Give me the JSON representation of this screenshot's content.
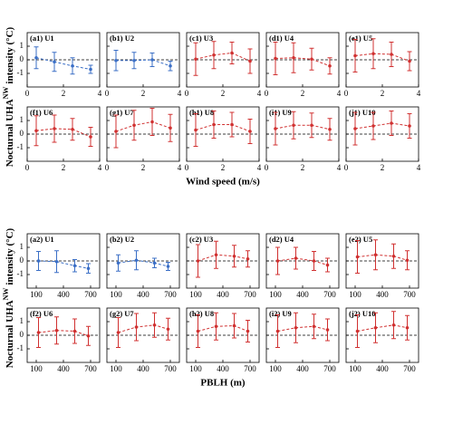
{
  "chart_data": [
    {
      "type": "errorbar",
      "xlabel": "Wind speed (m/s)",
      "ylabel": [
        "Nocturnal UHA",
        "NW",
        "intensity (°C)"
      ],
      "xlim": [
        0,
        4
      ],
      "xticks": [
        0,
        2,
        4
      ],
      "ylim": [
        -2,
        2
      ],
      "yticks": [
        -1,
        0,
        1
      ],
      "panels": [
        {
          "title": "(a1) U1",
          "color": "#3b6fc6",
          "x": [
            0.5,
            1.5,
            2.5,
            3.5
          ],
          "values": [
            0.15,
            -0.15,
            -0.45,
            -0.7
          ],
          "errors": [
            0.8,
            0.7,
            0.6,
            0.3
          ]
        },
        {
          "title": "(b1) U2",
          "color": "#3b6fc6",
          "x": [
            0.5,
            1.5,
            2.5,
            3.5
          ],
          "values": [
            -0.05,
            -0.05,
            0,
            -0.45
          ],
          "errors": [
            0.75,
            0.6,
            0.5,
            0.35
          ]
        },
        {
          "title": "(c1) U3",
          "color": "#d03030",
          "x": [
            0.5,
            1.5,
            2.5,
            3.5
          ],
          "values": [
            0.05,
            0.35,
            0.5,
            -0.1
          ],
          "errors": [
            1.2,
            1.0,
            0.8,
            0.9
          ]
        },
        {
          "title": "(d1) U4",
          "color": "#d03030",
          "x": [
            0.5,
            1.5,
            2.5,
            3.5
          ],
          "values": [
            0.1,
            0.15,
            0.05,
            -0.45
          ],
          "errors": [
            1.2,
            1.1,
            0.8,
            0.6
          ]
        },
        {
          "title": "(e1) U5",
          "color": "#d03030",
          "x": [
            0.5,
            1.5,
            2.5,
            3.5
          ],
          "values": [
            0.3,
            0.45,
            0.4,
            -0.1
          ],
          "errors": [
            1.2,
            1.1,
            0.9,
            0.7
          ]
        },
        {
          "title": "(f1) U6",
          "color": "#d03030",
          "x": [
            0.5,
            1.5,
            2.5,
            3.5
          ],
          "values": [
            0.25,
            0.4,
            0.35,
            -0.2
          ],
          "errors": [
            1.1,
            1.0,
            0.8,
            0.7
          ]
        },
        {
          "title": "(g1) U7",
          "color": "#d03030",
          "x": [
            0.5,
            1.5,
            2.5,
            3.5
          ],
          "values": [
            0.2,
            0.65,
            0.9,
            0.45
          ],
          "errors": [
            1.2,
            1.1,
            1.0,
            1.0
          ]
        },
        {
          "title": "(h1) U8",
          "color": "#d03030",
          "x": [
            0.5,
            1.5,
            2.5,
            3.5
          ],
          "values": [
            0.3,
            0.7,
            0.7,
            0.2
          ],
          "errors": [
            1.2,
            1.0,
            0.9,
            0.9
          ]
        },
        {
          "title": "(i1) U9",
          "color": "#d03030",
          "x": [
            0.5,
            1.5,
            2.5,
            3.5
          ],
          "values": [
            0.4,
            0.65,
            0.65,
            0.35
          ],
          "errors": [
            1.2,
            1.0,
            0.9,
            0.8
          ]
        },
        {
          "title": "(j1) U10",
          "color": "#d03030",
          "x": [
            0.5,
            1.5,
            2.5,
            3.5
          ],
          "values": [
            0.4,
            0.6,
            0.8,
            0.6
          ],
          "errors": [
            1.2,
            1.0,
            0.9,
            0.9
          ]
        }
      ]
    },
    {
      "type": "errorbar",
      "xlabel": "PBLH (m)",
      "ylabel": [
        "Nocturnal UHA",
        "NW",
        "intensity (°C)"
      ],
      "xlim": [
        0,
        800
      ],
      "xticks": [
        100,
        400,
        700
      ],
      "ylim": [
        -2,
        2
      ],
      "yticks": [
        -1,
        0,
        1
      ],
      "panels": [
        {
          "title": "(a2) U1",
          "color": "#3b6fc6",
          "x": [
            125,
            325,
            525,
            675
          ],
          "values": [
            0,
            -0.05,
            -0.35,
            -0.55
          ],
          "errors": [
            0.7,
            0.8,
            0.45,
            0.35
          ]
        },
        {
          "title": "(b2) U2",
          "color": "#3b6fc6",
          "x": [
            125,
            325,
            525,
            675
          ],
          "values": [
            -0.15,
            0.05,
            -0.15,
            -0.4
          ],
          "errors": [
            0.6,
            0.7,
            0.35,
            0.3
          ]
        },
        {
          "title": "(c2) U3",
          "color": "#d03030",
          "x": [
            125,
            325,
            525,
            675
          ],
          "values": [
            0,
            0.45,
            0.35,
            0.15
          ],
          "errors": [
            1.2,
            1.0,
            0.8,
            0.6
          ]
        },
        {
          "title": "(d2) U4",
          "color": "#d03030",
          "x": [
            125,
            325,
            525,
            675
          ],
          "values": [
            0,
            0.2,
            0,
            -0.3
          ],
          "errors": [
            1.0,
            0.8,
            0.7,
            0.5
          ]
        },
        {
          "title": "(e2) U5",
          "color": "#d03030",
          "x": [
            125,
            325,
            525,
            675
          ],
          "values": [
            0.3,
            0.45,
            0.35,
            0.05
          ],
          "errors": [
            1.2,
            1.1,
            0.9,
            0.7
          ]
        },
        {
          "title": "(f2) U6",
          "color": "#d03030",
          "x": [
            125,
            325,
            525,
            675
          ],
          "values": [
            0.2,
            0.35,
            0.3,
            -0.05
          ],
          "errors": [
            1.1,
            1.0,
            0.9,
            0.7
          ]
        },
        {
          "title": "(g2) U7",
          "color": "#d03030",
          "x": [
            125,
            325,
            525,
            675
          ],
          "values": [
            0.2,
            0.6,
            0.75,
            0.45
          ],
          "errors": [
            1.1,
            1.0,
            0.9,
            0.8
          ]
        },
        {
          "title": "(h2) U8",
          "color": "#d03030",
          "x": [
            125,
            325,
            525,
            675
          ],
          "values": [
            0.3,
            0.65,
            0.7,
            0.3
          ],
          "errors": [
            1.2,
            1.0,
            0.9,
            0.8
          ]
        },
        {
          "title": "(i2) U9",
          "color": "#d03030",
          "x": [
            125,
            325,
            525,
            675
          ],
          "values": [
            0.3,
            0.55,
            0.65,
            0.4
          ],
          "errors": [
            1.2,
            1.1,
            0.9,
            0.8
          ]
        },
        {
          "title": "(j2) U10",
          "color": "#d03030",
          "x": [
            125,
            325,
            525,
            675
          ],
          "values": [
            0.3,
            0.55,
            0.75,
            0.55
          ],
          "errors": [
            1.2,
            1.1,
            1.0,
            0.9
          ]
        }
      ]
    }
  ]
}
